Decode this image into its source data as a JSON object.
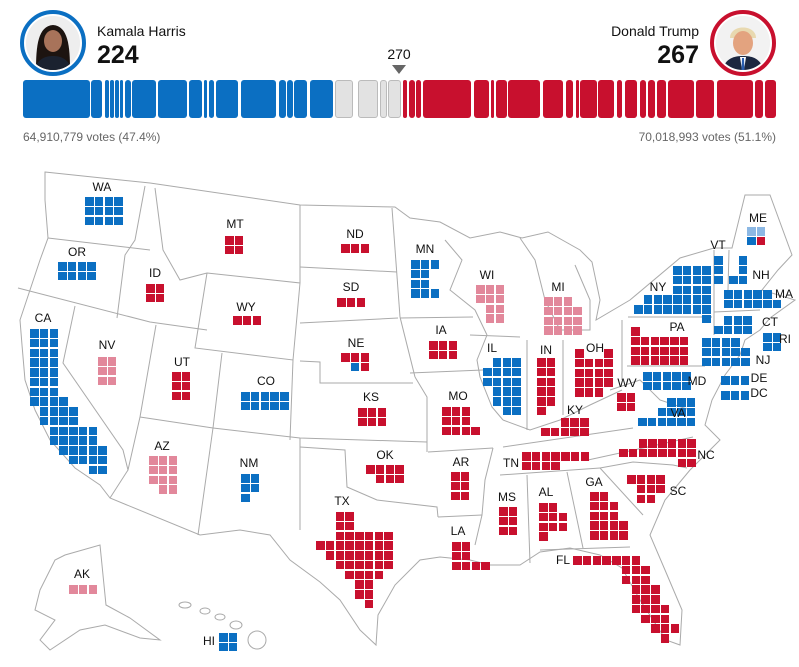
{
  "colors": {
    "dem": "#0b6fc2",
    "rep": "#c8102e",
    "dem-lead": "#8cb8e4",
    "rep-lead": "#e2889b",
    "uncalled": "#e2e2e2"
  },
  "header": {
    "harris": {
      "name": "Kamala Harris",
      "electoral_votes": "224",
      "popular_votes": "64,910,779 votes (47.4%)"
    },
    "trump": {
      "name": "Donald Trump",
      "electoral_votes": "267",
      "popular_votes": "70,018,993 votes (51.1%)"
    },
    "threshold": "270"
  },
  "states": [
    {
      "abbr": "WA",
      "ev": 12,
      "status": "dem"
    },
    {
      "abbr": "OR",
      "ev": 8,
      "status": "dem"
    },
    {
      "abbr": "CA",
      "ev": 54,
      "status": "dem"
    },
    {
      "abbr": "NV",
      "ev": 6,
      "status": "rep-lead"
    },
    {
      "abbr": "ID",
      "ev": 4,
      "status": "rep"
    },
    {
      "abbr": "MT",
      "ev": 4,
      "status": "rep"
    },
    {
      "abbr": "WY",
      "ev": 3,
      "status": "rep"
    },
    {
      "abbr": "UT",
      "ev": 6,
      "status": "rep"
    },
    {
      "abbr": "CO",
      "ev": 10,
      "status": "dem"
    },
    {
      "abbr": "AZ",
      "ev": 11,
      "status": "rep-lead"
    },
    {
      "abbr": "NM",
      "ev": 5,
      "status": "dem"
    },
    {
      "abbr": "AK",
      "ev": 3,
      "status": "rep-lead"
    },
    {
      "abbr": "HI",
      "ev": 4,
      "status": "dem"
    },
    {
      "abbr": "ND",
      "ev": 3,
      "status": "rep"
    },
    {
      "abbr": "SD",
      "ev": 3,
      "status": "rep"
    },
    {
      "abbr": "NE",
      "ev": 5,
      "status": "rep",
      "tiles": [
        "rep",
        "rep",
        "rep",
        "dem",
        "rep"
      ]
    },
    {
      "abbr": "KS",
      "ev": 6,
      "status": "rep"
    },
    {
      "abbr": "OK",
      "ev": 7,
      "status": "rep"
    },
    {
      "abbr": "TX",
      "ev": 40,
      "status": "rep"
    },
    {
      "abbr": "MN",
      "ev": 10,
      "status": "dem"
    },
    {
      "abbr": "IA",
      "ev": 6,
      "status": "rep"
    },
    {
      "abbr": "MO",
      "ev": 10,
      "status": "rep"
    },
    {
      "abbr": "AR",
      "ev": 6,
      "status": "rep"
    },
    {
      "abbr": "LA",
      "ev": 8,
      "status": "rep"
    },
    {
      "abbr": "WI",
      "ev": 10,
      "status": "rep-lead"
    },
    {
      "abbr": "IL",
      "ev": 19,
      "status": "dem"
    },
    {
      "abbr": "MI",
      "ev": 15,
      "status": "rep-lead"
    },
    {
      "abbr": "IN",
      "ev": 11,
      "status": "rep"
    },
    {
      "abbr": "OH",
      "ev": 17,
      "status": "rep"
    },
    {
      "abbr": "KY",
      "ev": 8,
      "status": "rep"
    },
    {
      "abbr": "TN",
      "ev": 11,
      "status": "rep"
    },
    {
      "abbr": "MS",
      "ev": 6,
      "status": "rep"
    },
    {
      "abbr": "AL",
      "ev": 9,
      "status": "rep"
    },
    {
      "abbr": "GA",
      "ev": 16,
      "status": "rep"
    },
    {
      "abbr": "FL",
      "ev": 30,
      "status": "rep"
    },
    {
      "abbr": "SC",
      "ev": 9,
      "status": "rep"
    },
    {
      "abbr": "NC",
      "ev": 16,
      "status": "rep"
    },
    {
      "abbr": "VA",
      "ev": 13,
      "status": "dem"
    },
    {
      "abbr": "WV",
      "ev": 4,
      "status": "rep"
    },
    {
      "abbr": "MD",
      "ev": 10,
      "status": "dem"
    },
    {
      "abbr": "DE",
      "ev": 3,
      "status": "dem"
    },
    {
      "abbr": "DC",
      "ev": 3,
      "status": "dem"
    },
    {
      "abbr": "PA",
      "ev": 19,
      "status": "rep"
    },
    {
      "abbr": "NJ",
      "ev": 14,
      "status": "dem"
    },
    {
      "abbr": "NY",
      "ev": 28,
      "status": "dem"
    },
    {
      "abbr": "CT",
      "ev": 7,
      "status": "dem"
    },
    {
      "abbr": "RI",
      "ev": 4,
      "status": "dem"
    },
    {
      "abbr": "MA",
      "ev": 11,
      "status": "dem"
    },
    {
      "abbr": "VT",
      "ev": 3,
      "status": "dem"
    },
    {
      "abbr": "NH",
      "ev": 4,
      "status": "dem"
    },
    {
      "abbr": "ME",
      "ev": 4,
      "status": "dem",
      "tiles": [
        "dem-lead",
        "dem-lead",
        "dem",
        "rep"
      ]
    }
  ]
}
